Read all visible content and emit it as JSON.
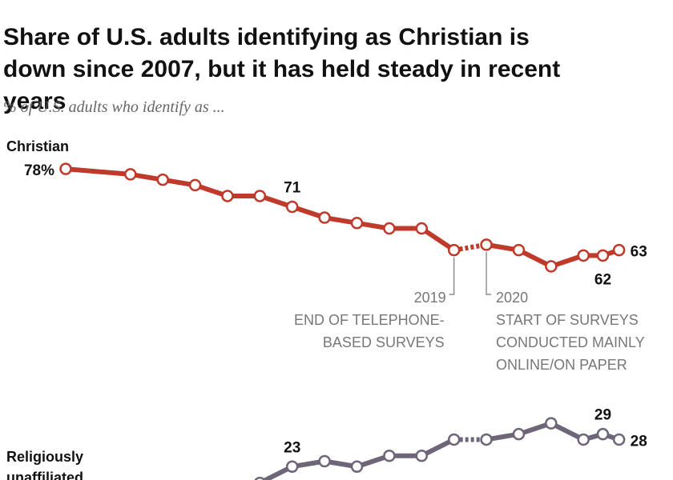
{
  "chart_data": {
    "type": "line",
    "title": "Share of U.S. adults identifying as Christian is down since 2007, but it has held steady in recent years",
    "subtitle": "% of U.S. adults who identify as ...",
    "x": [
      2007,
      2009,
      2010,
      2011,
      2012,
      2013,
      2014,
      2015,
      2016,
      2017,
      2018,
      2019,
      2020,
      2021,
      2022,
      2023,
      2023.6,
      2024.1
    ],
    "xlim": [
      2006,
      2025
    ],
    "ylim": [
      15,
      80
    ],
    "series": [
      {
        "name": "Christian",
        "color": "#bf3a2b",
        "values": [
          78,
          77,
          76,
          75,
          73,
          73,
          71,
          69,
          68,
          67,
          67,
          63,
          64,
          63,
          60,
          62,
          62,
          63
        ],
        "value_labels": [
          "78%",
          null,
          null,
          null,
          null,
          null,
          "71",
          null,
          null,
          null,
          null,
          null,
          null,
          null,
          null,
          null,
          "62",
          "63"
        ]
      },
      {
        "name": "Religiously unaffiliated",
        "color": "#6f6579",
        "values": [
          null,
          null,
          null,
          null,
          null,
          20,
          23,
          24,
          23,
          25,
          25,
          28,
          28,
          29,
          31,
          28,
          29,
          28
        ],
        "value_labels": [
          null,
          null,
          null,
          null,
          null,
          null,
          "23",
          null,
          null,
          null,
          null,
          null,
          null,
          null,
          null,
          null,
          "29",
          "28"
        ]
      }
    ],
    "annotations": [
      {
        "x": 2019,
        "text": [
          "END OF TELEPHONE-",
          "BASED SURVEYS"
        ]
      },
      {
        "x": 2020,
        "text": [
          "START OF SURVEYS",
          "CONDUCTED MAINLY",
          "ONLINE/ON PAPER"
        ]
      }
    ]
  }
}
